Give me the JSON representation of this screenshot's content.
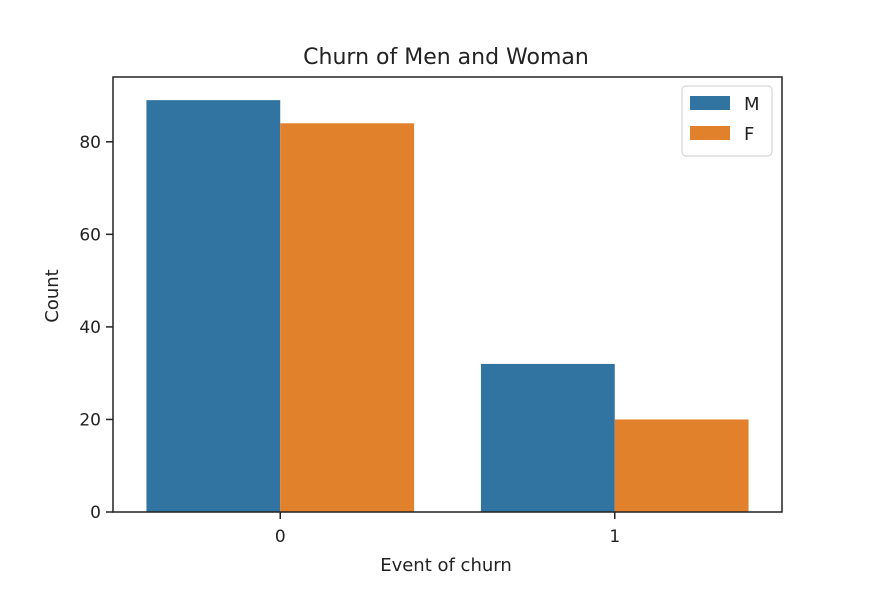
{
  "chart_data": {
    "type": "bar",
    "title": "Churn of Men and Woman",
    "xlabel": "Event of churn",
    "ylabel": "Count",
    "categories": [
      "0",
      "1"
    ],
    "ylim": [
      0,
      94
    ],
    "yticks": [
      0,
      20,
      40,
      60,
      80
    ],
    "series": [
      {
        "name": "M",
        "color": "#3274a1",
        "values": [
          89,
          32
        ]
      },
      {
        "name": "F",
        "color": "#e1812c",
        "values": [
          84,
          20
        ]
      }
    ],
    "legend": {
      "position": "top-right"
    },
    "grid": false
  }
}
